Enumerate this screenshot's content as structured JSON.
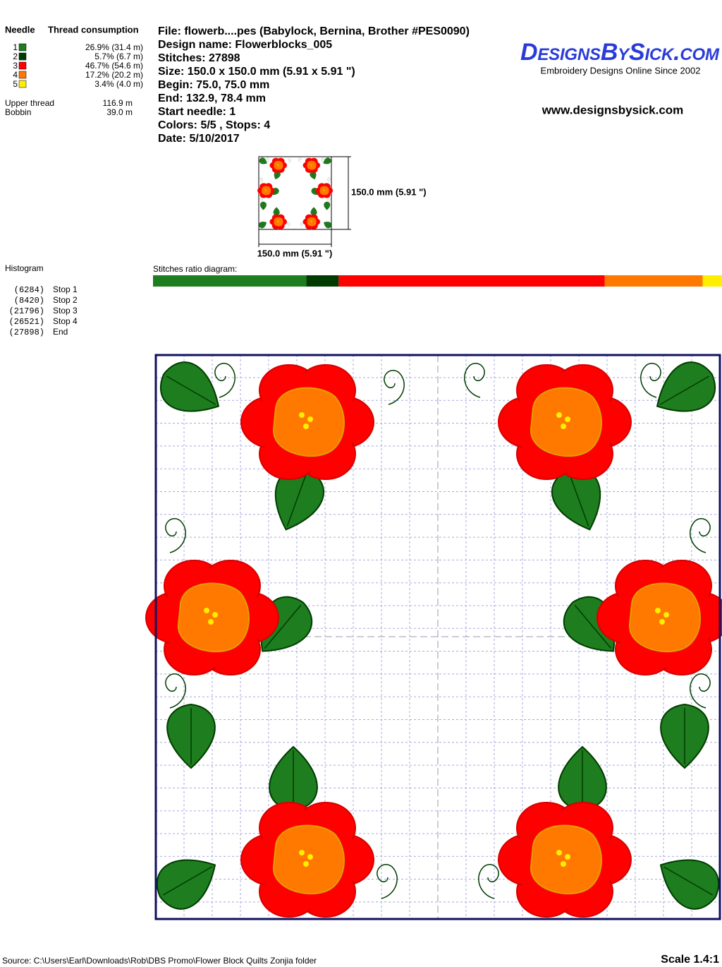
{
  "needle_panel": {
    "header_needle": "Needle",
    "header_thread": "Thread consumption",
    "needles": [
      {
        "number": "1",
        "color": "#1e7d1e",
        "percent": 26.9,
        "label": "26.9% (31.4 m)"
      },
      {
        "number": "2",
        "color": "#003c00",
        "percent": 5.7,
        "label": "5.7% (6.7 m)"
      },
      {
        "number": "3",
        "color": "#ff0000",
        "percent": 46.7,
        "label": "46.7% (54.6 m)"
      },
      {
        "number": "4",
        "color": "#ff7800",
        "percent": 17.2,
        "label": "17.2% (20.2 m)"
      },
      {
        "number": "5",
        "color": "#ffee00",
        "percent": 3.4,
        "label": "3.4% (4.0 m)"
      }
    ],
    "upper_thread": {
      "label": "Upper thread",
      "value": "116.9 m"
    },
    "bobbin": {
      "label": "Bobbin",
      "value": "39.0 m"
    }
  },
  "design_info": {
    "lines": [
      "File: flowerb....pes  (Babylock, Bernina, Brother #PES0090)",
      "Design name: Flowerblocks_005",
      "Stitches: 27898",
      "Size: 150.0 x 150.0 mm (5.91 x 5.91 \")",
      "Begin: 75.0, 75.0 mm",
      "End: 132.9, 78.4 mm",
      "Start needle: 1",
      "Colors: 5/5 , Stops: 4",
      "Date: 5/10/2017"
    ]
  },
  "logo": {
    "brand": "DesignsBySick.com",
    "tagline": "Embroidery Designs Online Since 2002",
    "url": "www.designsbysick.com"
  },
  "thumbnail": {
    "height_label": "150.0 mm (5.91 \")",
    "width_label": "150.0 mm (5.91 \")"
  },
  "histogram": {
    "title": "Histogram",
    "stops": [
      {
        "count": "(6284)",
        "label": "Stop 1"
      },
      {
        "count": "(8420)",
        "label": "Stop 2"
      },
      {
        "count": "(21796)",
        "label": "Stop 3"
      },
      {
        "count": "(26521)",
        "label": "Stop 4"
      },
      {
        "count": "(27898)",
        "label": "End"
      }
    ]
  },
  "ratio_diagram": {
    "title": "Stitches ratio diagram:"
  },
  "footer": {
    "source": "Source: C:\\Users\\Earl\\Downloads\\Rob\\DBS Promo\\Flower Block Quilts Zonjia folder",
    "scale": "Scale 1.4:1"
  }
}
